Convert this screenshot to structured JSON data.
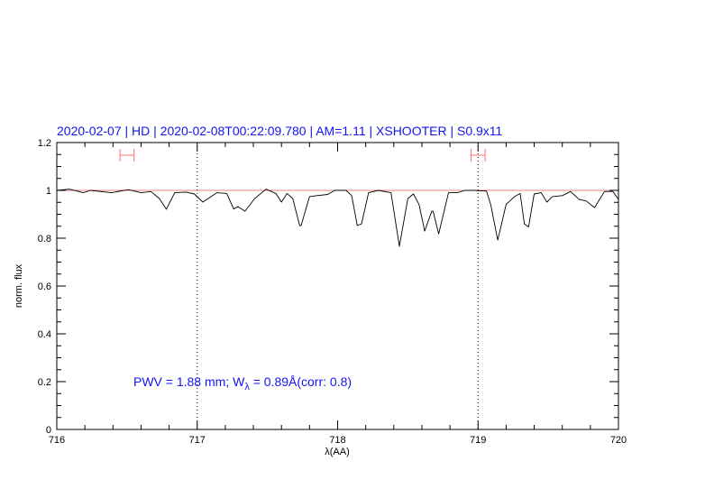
{
  "chart_data": {
    "type": "line",
    "title": "2020-02-07 | HD | 2020-02-08T00:22:09.780 | AM=1.11 | XSHOOTER | S0.9x11",
    "xlabel": "λ(AA)",
    "ylabel": "norm. flux",
    "xlim": [
      716,
      720
    ],
    "ylim": [
      0,
      1.2
    ],
    "xticks": [
      716,
      717,
      718,
      719,
      720
    ],
    "xtick_labels": [
      "716",
      "717",
      "718",
      "719",
      "720"
    ],
    "yticks": [
      0,
      0.2,
      0.4,
      0.6,
      0.8,
      1,
      1.2
    ],
    "ytick_labels": [
      "0",
      "0.2",
      "0.4",
      "0.6",
      "0.8",
      "1",
      "1.2"
    ],
    "grid": false,
    "annotation": {
      "prefix": "PWV = 1.88 mm; W",
      "subscript": "λ",
      "suffix": " = 0.89Å(corr: 0.8)"
    },
    "reference_line": {
      "y": 1.0,
      "color": "#e88080"
    },
    "vertical_lines": [
      717,
      719
    ],
    "ranges": [
      {
        "x": [
          716.45,
          716.55
        ],
        "y": 1.147,
        "color": "#ff7070"
      },
      {
        "x": [
          718.95,
          719.05
        ],
        "y": 1.147,
        "color": "#ff7070"
      }
    ],
    "colors": {
      "spectrum": "#000000",
      "title": "#1414f0"
    },
    "series": [
      {
        "x": [
          716.0,
          716.09,
          716.19,
          716.24,
          716.39,
          716.51,
          716.6,
          716.67,
          716.73,
          716.78,
          716.84,
          716.92,
          716.98,
          717.04,
          717.14,
          717.21,
          717.26,
          717.29,
          717.34,
          717.41,
          717.49,
          717.56,
          717.6,
          717.64,
          717.68,
          717.73,
          717.74,
          717.8,
          717.84,
          717.93,
          717.98,
          718.06,
          718.1,
          718.14,
          718.17,
          718.22,
          718.29,
          718.38,
          718.44,
          718.5,
          718.54,
          718.58,
          718.62,
          718.67,
          718.68,
          718.72,
          718.79,
          718.85,
          718.91,
          718.97,
          719.06,
          719.09,
          719.14,
          719.2,
          719.26,
          719.3,
          719.33,
          719.36,
          719.4,
          719.45,
          719.49,
          719.53,
          719.6,
          719.66,
          719.72,
          719.77,
          719.83,
          719.9,
          719.96,
          720.0
        ],
        "y": [
          1.0,
          1.005,
          0.99,
          1.0,
          0.99,
          1.003,
          0.99,
          0.995,
          0.966,
          0.921,
          0.99,
          0.993,
          0.985,
          0.951,
          0.99,
          0.987,
          0.922,
          0.932,
          0.913,
          0.966,
          1.005,
          0.987,
          0.951,
          0.987,
          0.966,
          0.853,
          0.853,
          0.974,
          0.977,
          0.983,
          1.0,
          1.0,
          0.978,
          0.853,
          0.86,
          0.99,
          1.0,
          0.99,
          0.766,
          0.966,
          0.985,
          0.941,
          0.83,
          0.913,
          0.913,
          0.818,
          0.99,
          0.99,
          1.0,
          1.0,
          0.997,
          0.941,
          0.792,
          0.941,
          0.974,
          0.987,
          0.86,
          0.847,
          0.985,
          0.99,
          0.951,
          0.974,
          0.978,
          0.995,
          0.962,
          0.956,
          0.928,
          0.995,
          0.996,
          0.962
        ]
      }
    ]
  }
}
